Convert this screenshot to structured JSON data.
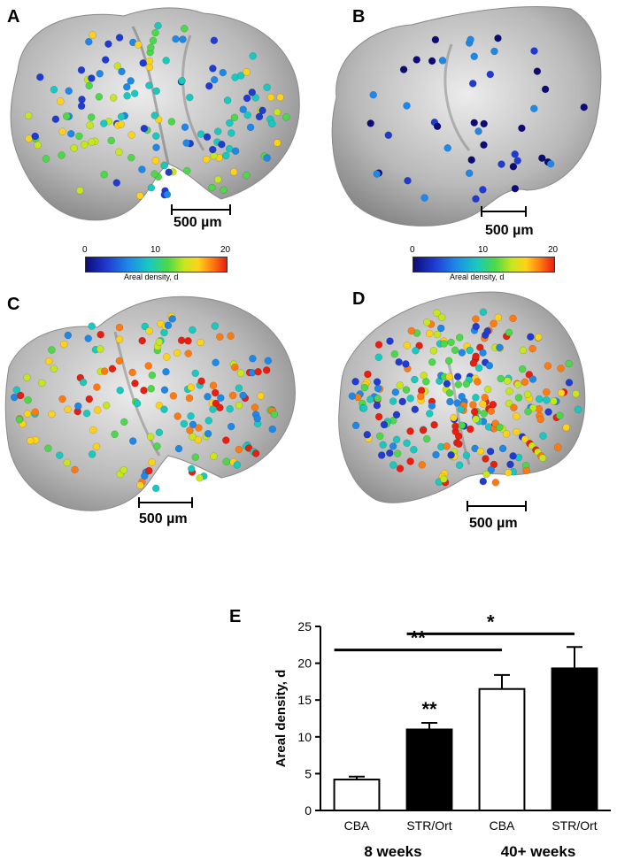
{
  "panels": [
    {
      "letter": "A",
      "scale_label": "500 µm"
    },
    {
      "letter": "B",
      "scale_label": "500 µm"
    },
    {
      "letter": "C",
      "scale_label": "500 µm"
    },
    {
      "letter": "D",
      "scale_label": "500 µm"
    }
  ],
  "colorbar": {
    "min_label": "0",
    "mid_label": "10",
    "max_label": "20",
    "title": "Areal density, d"
  },
  "chart_data": {
    "type": "bar",
    "panel_letter": "E",
    "categories": [
      "CBA",
      "STR/Ort",
      "CBA",
      "STR/Ort"
    ],
    "groups": [
      "8 weeks",
      "40+ weeks"
    ],
    "values": [
      4.2,
      11.0,
      16.5,
      19.3
    ],
    "errors": [
      0.4,
      0.9,
      1.9,
      2.9
    ],
    "fills": [
      "#ffffff",
      "#000000",
      "#ffffff",
      "#000000"
    ],
    "ylabel": "Areal density, d",
    "ylim": [
      0,
      25
    ],
    "yticks": [
      0,
      5,
      10,
      15,
      20,
      25
    ],
    "significance": [
      {
        "label": "**",
        "from": 0,
        "to": 2
      },
      {
        "label": "*",
        "from": 1,
        "to": 3
      },
      {
        "label": "**",
        "bar": 1
      }
    ]
  }
}
